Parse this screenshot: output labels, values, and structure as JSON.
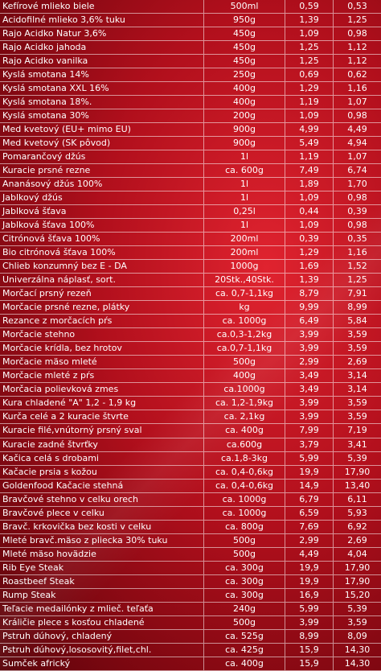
{
  "rows": [
    {
      "name": "Kefírové mlieko biele",
      "size": "500ml",
      "p1": "0,59",
      "p2": "0,53"
    },
    {
      "name": "Acidofilné mlieko 3,6% tuku",
      "size": "950g",
      "p1": "1,39",
      "p2": "1,25"
    },
    {
      "name": "Rajo Acidko Natur 3,6%",
      "size": "450g",
      "p1": "1,09",
      "p2": "0,98"
    },
    {
      "name": "Rajo Acidko jahoda",
      "size": "450g",
      "p1": "1,25",
      "p2": "1,12"
    },
    {
      "name": "Rajo Acidko vanilka",
      "size": "450g",
      "p1": "1,25",
      "p2": "1,12"
    },
    {
      "name": "Kyslá smotana 14%",
      "size": "250g",
      "p1": "0,69",
      "p2": "0,62"
    },
    {
      "name": "Kyslá smotana XXL 16%",
      "size": "400g",
      "p1": "1,29",
      "p2": "1,16"
    },
    {
      "name": "Kyslá smotana 18%.",
      "size": "400g",
      "p1": "1,19",
      "p2": "1,07"
    },
    {
      "name": "Kyslá smotana 30%",
      "size": "200g",
      "p1": "1,09",
      "p2": "0,98"
    },
    {
      "name": "Med kvetový (EU+ mimo EU)",
      "size": "900g",
      "p1": "4,99",
      "p2": "4,49"
    },
    {
      "name": "Med kvetový (SK pôvod)",
      "size": "900g",
      "p1": "5,49",
      "p2": "4,94"
    },
    {
      "name": "Pomarančový džús",
      "size": "1l",
      "p1": "1,19",
      "p2": "1,07"
    },
    {
      "name": "Kuracie prsné rezne",
      "size": "ca. 600g",
      "p1": "7,49",
      "p2": "6,74"
    },
    {
      "name": "Ananásový džús 100%",
      "size": "1l",
      "p1": "1,89",
      "p2": "1,70"
    },
    {
      "name": "Jablkový džús",
      "size": "1l",
      "p1": "1,09",
      "p2": "0,98"
    },
    {
      "name": "Jablková šťava",
      "size": "0,25l",
      "p1": "0,44",
      "p2": "0,39"
    },
    {
      "name": "Jablková šťava 100%",
      "size": "1l",
      "p1": "1,09",
      "p2": "0,98"
    },
    {
      "name": "Citrónová šťava 100%",
      "size": "200ml",
      "p1": "0,39",
      "p2": "0,35"
    },
    {
      "name": "Bio citrónová šťava 100%",
      "size": "200ml",
      "p1": "1,29",
      "p2": "1,16"
    },
    {
      "name": "Chlieb konzumný bez E - DA",
      "size": "1000g",
      "p1": "1,69",
      "p2": "1,52"
    },
    {
      "name": "Univerzálna náplasť, sort.",
      "size": "20Stk.,40Stk.",
      "p1": "1,39",
      "p2": "1,25"
    },
    {
      "name": "Morčací prsný rezeň",
      "size": "ca. 0,7-1,1kg",
      "p1": "8,79",
      "p2": "7,91"
    },
    {
      "name": "Morčacie prsné rezne, plátky",
      "size": "kg",
      "p1": "9,99",
      "p2": "8,99"
    },
    {
      "name": "Rezance z morčacích pŕs",
      "size": "ca. 1000g",
      "p1": "6,49",
      "p2": "5,84"
    },
    {
      "name": "Morčacie stehno",
      "size": "ca.0,3-1,2kg",
      "p1": "3,99",
      "p2": "3,59"
    },
    {
      "name": "Morčacie krídla, bez hrotov",
      "size": "ca.0,7-1,1kg",
      "p1": "3,99",
      "p2": "3,59"
    },
    {
      "name": "Morčacie mäso mleté",
      "size": "500g",
      "p1": "2,99",
      "p2": "2,69"
    },
    {
      "name": "Morčacie mleté z pŕs",
      "size": "400g",
      "p1": "3,49",
      "p2": "3,14"
    },
    {
      "name": "Morčacia polievková zmes",
      "size": "ca.1000g",
      "p1": "3,49",
      "p2": "3,14"
    },
    {
      "name": "Kura chladené \"A\"  1,2 - 1,9 kg",
      "size": "ca. 1,2-1,9kg",
      "p1": "3,99",
      "p2": "3,59"
    },
    {
      "name": "Kurča celé a 2 kuracie štvrte",
      "size": "ca. 2,1kg",
      "p1": "3,99",
      "p2": "3,59"
    },
    {
      "name": "Kuracie filé,vnútorný prsný sval",
      "size": "ca. 400g",
      "p1": "7,99",
      "p2": "7,19"
    },
    {
      "name": "Kuracie zadné štvrťky",
      "size": "ca.600g",
      "p1": "3,79",
      "p2": "3,41"
    },
    {
      "name": "Kačica celá s drobami",
      "size": "ca.1,8-3kg",
      "p1": "5,99",
      "p2": "5,39"
    },
    {
      "name": "Kačacie prsia s kožou",
      "size": "ca. 0,4-0,6kg",
      "p1": "19,9",
      "p2": "17,90"
    },
    {
      "name": "Goldenfood Kačacie stehná",
      "size": "ca. 0,4-0,6kg",
      "p1": "14,9",
      "p2": "13,40"
    },
    {
      "name": "Bravčové stehno v celku orech",
      "size": "ca. 1000g",
      "p1": "6,79",
      "p2": "6,11"
    },
    {
      "name": "Bravčové plece v celku",
      "size": "ca. 1000g",
      "p1": "6,59",
      "p2": "5,93"
    },
    {
      "name": "Bravč. krkovička bez kosti v celku",
      "size": "ca. 800g",
      "p1": "7,69",
      "p2": "6,92"
    },
    {
      "name": "Mleté bravč.mäso z pliecka 30% tuku",
      "size": "500g",
      "p1": "2,99",
      "p2": "2,69"
    },
    {
      "name": "Mleté mäso hovädzie",
      "size": "500g",
      "p1": "4,49",
      "p2": "4,04"
    },
    {
      "name": "Rib Eye Steak",
      "size": "ca. 300g",
      "p1": "19,9",
      "p2": "17,90"
    },
    {
      "name": "Roastbeef Steak",
      "size": "ca. 300g",
      "p1": "19,9",
      "p2": "17,90"
    },
    {
      "name": "Rump Steak",
      "size": "ca. 300g",
      "p1": "16,9",
      "p2": "15,20"
    },
    {
      "name": "Teľacie medailónky z mlieč. teľaťa",
      "size": "240g",
      "p1": "5,99",
      "p2": "5,39"
    },
    {
      "name": "Králičie plece s kosťou chladené",
      "size": "500g",
      "p1": "3,99",
      "p2": "3,59"
    },
    {
      "name": "Pstruh dúhový, chladený",
      "size": "ca. 525g",
      "p1": "8,99",
      "p2": "8,09"
    },
    {
      "name": "Pstruh dúhový,lososovitý,filet,chl.",
      "size": "ca. 425g",
      "p1": "15,9",
      "p2": "14,30"
    },
    {
      "name": "Sumček africký",
      "size": "ca. 400g",
      "p1": "15,9",
      "p2": "14,30"
    }
  ]
}
